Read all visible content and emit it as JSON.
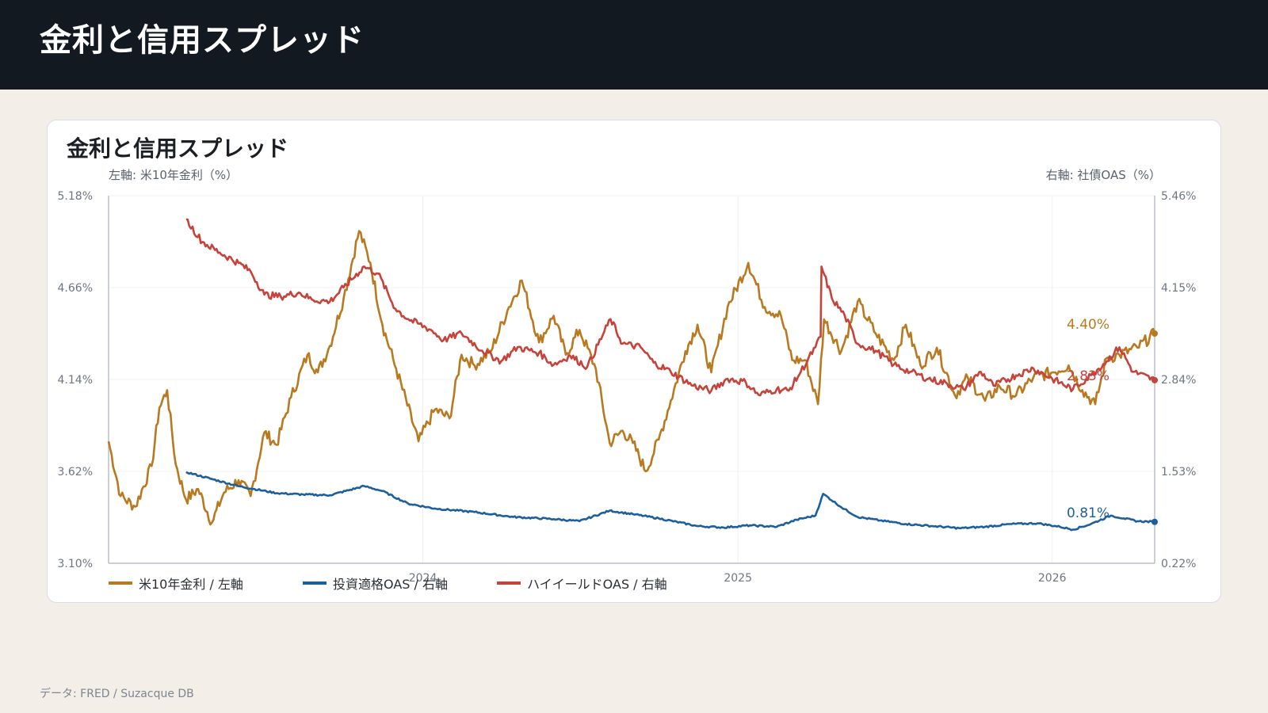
{
  "header": {
    "title": "金利と信用スプレッド"
  },
  "card": {
    "title": "金利と信用スプレッド",
    "left_axis_caption": "左軸: 米10年金利（%）",
    "right_axis_caption": "右軸: 社債OAS（%）"
  },
  "footer": {
    "source": "データ: FRED / Suzacque DB"
  },
  "colors": {
    "treasury": "#b8791f",
    "ig": "#1d5f9c",
    "hy": "#c6433b",
    "grid": "#edf0f3",
    "axis": "#b8c0c9"
  },
  "chart_data": {
    "type": "line",
    "left_axis": {
      "label": "米10年金利（%）",
      "range": [
        3.1,
        5.18
      ],
      "ticks": [
        "3.10%",
        "3.62%",
        "4.14%",
        "4.66%",
        "5.18%"
      ]
    },
    "right_axis": {
      "label": "社債OAS（%）",
      "range": [
        0.22,
        5.46
      ],
      "ticks": [
        "0.22%",
        "1.53%",
        "2.84%",
        "4.15%",
        "5.46%"
      ]
    },
    "x_axis": {
      "range": [
        "2023-01-01",
        "2026-04-30"
      ],
      "ticks": [
        "2024",
        "2025",
        "2026"
      ]
    },
    "grid": true,
    "legend_position": "bottom-left",
    "series": [
      {
        "name": "米10年金利 / 左軸",
        "axis": "left",
        "color": "#b8791f",
        "end_label": "4.40%",
        "points": [
          [
            "2023-01-01",
            3.79
          ],
          [
            "2023-01-15",
            3.48
          ],
          [
            "2023-02-01",
            3.42
          ],
          [
            "2023-02-20",
            3.65
          ],
          [
            "2023-03-01",
            3.98
          ],
          [
            "2023-03-10",
            4.08
          ],
          [
            "2023-03-20",
            3.66
          ],
          [
            "2023-04-01",
            3.46
          ],
          [
            "2023-04-15",
            3.52
          ],
          [
            "2023-05-01",
            3.33
          ],
          [
            "2023-05-15",
            3.5
          ],
          [
            "2023-06-01",
            3.57
          ],
          [
            "2023-06-15",
            3.48
          ],
          [
            "2023-07-01",
            3.84
          ],
          [
            "2023-07-15",
            3.77
          ],
          [
            "2023-08-01",
            4.04
          ],
          [
            "2023-08-20",
            4.28
          ],
          [
            "2023-09-01",
            4.18
          ],
          [
            "2023-09-15",
            4.33
          ],
          [
            "2023-10-01",
            4.6
          ],
          [
            "2023-10-19",
            4.98
          ],
          [
            "2023-11-01",
            4.8
          ],
          [
            "2023-11-15",
            4.45
          ],
          [
            "2023-12-01",
            4.2
          ],
          [
            "2023-12-27",
            3.79
          ],
          [
            "2024-01-15",
            3.97
          ],
          [
            "2024-02-01",
            3.92
          ],
          [
            "2024-02-15",
            4.28
          ],
          [
            "2024-03-01",
            4.22
          ],
          [
            "2024-03-20",
            4.3
          ],
          [
            "2024-04-10",
            4.55
          ],
          [
            "2024-04-25",
            4.7
          ],
          [
            "2024-05-15",
            4.35
          ],
          [
            "2024-06-01",
            4.5
          ],
          [
            "2024-06-15",
            4.28
          ],
          [
            "2024-07-01",
            4.42
          ],
          [
            "2024-07-20",
            4.2
          ],
          [
            "2024-08-05",
            3.78
          ],
          [
            "2024-08-20",
            3.85
          ],
          [
            "2024-09-01",
            3.78
          ],
          [
            "2024-09-16",
            3.62
          ],
          [
            "2024-10-01",
            3.8
          ],
          [
            "2024-10-15",
            4.02
          ],
          [
            "2024-11-01",
            4.3
          ],
          [
            "2024-11-15",
            4.45
          ],
          [
            "2024-12-01",
            4.18
          ],
          [
            "2024-12-20",
            4.55
          ],
          [
            "2025-01-13",
            4.8
          ],
          [
            "2025-02-01",
            4.55
          ],
          [
            "2025-02-20",
            4.5
          ],
          [
            "2025-03-05",
            4.25
          ],
          [
            "2025-03-20",
            4.25
          ],
          [
            "2025-04-04",
            4.0
          ],
          [
            "2025-04-11",
            4.48
          ],
          [
            "2025-05-01",
            4.3
          ],
          [
            "2025-05-20",
            4.58
          ],
          [
            "2025-06-10",
            4.4
          ],
          [
            "2025-07-01",
            4.25
          ],
          [
            "2025-07-15",
            4.45
          ],
          [
            "2025-08-01",
            4.22
          ],
          [
            "2025-08-20",
            4.32
          ],
          [
            "2025-09-10",
            4.05
          ],
          [
            "2025-09-25",
            4.15
          ],
          [
            "2025-10-15",
            4.02
          ],
          [
            "2025-11-01",
            4.1
          ],
          [
            "2025-11-20",
            4.05
          ],
          [
            "2025-12-10",
            4.15
          ],
          [
            "2026-01-01",
            4.18
          ],
          [
            "2026-01-20",
            4.22
          ],
          [
            "2026-02-05",
            4.08
          ],
          [
            "2026-02-20",
            4.0
          ],
          [
            "2026-03-05",
            4.26
          ],
          [
            "2026-03-20",
            4.28
          ],
          [
            "2026-04-10",
            4.32
          ],
          [
            "2026-04-30",
            4.4
          ]
        ]
      },
      {
        "name": "投資適格OAS / 右軸",
        "axis": "right",
        "color": "#1d5f9c",
        "end_label": "0.81%",
        "points": [
          [
            "2023-04-01",
            1.52
          ],
          [
            "2023-05-01",
            1.42
          ],
          [
            "2023-06-01",
            1.32
          ],
          [
            "2023-07-15",
            1.22
          ],
          [
            "2023-08-15",
            1.2
          ],
          [
            "2023-09-15",
            1.19
          ],
          [
            "2023-10-25",
            1.32
          ],
          [
            "2023-11-15",
            1.25
          ],
          [
            "2023-12-15",
            1.07
          ],
          [
            "2024-01-15",
            1.0
          ],
          [
            "2024-03-01",
            0.95
          ],
          [
            "2024-04-15",
            0.88
          ],
          [
            "2024-06-01",
            0.85
          ],
          [
            "2024-07-01",
            0.82
          ],
          [
            "2024-08-05",
            0.97
          ],
          [
            "2024-09-01",
            0.92
          ],
          [
            "2024-10-01",
            0.86
          ],
          [
            "2024-11-15",
            0.75
          ],
          [
            "2024-12-15",
            0.73
          ],
          [
            "2025-01-15",
            0.76
          ],
          [
            "2025-02-15",
            0.74
          ],
          [
            "2025-03-10",
            0.84
          ],
          [
            "2025-04-01",
            0.9
          ],
          [
            "2025-04-10",
            1.21
          ],
          [
            "2025-05-01",
            1.02
          ],
          [
            "2025-05-20",
            0.88
          ],
          [
            "2025-06-15",
            0.83
          ],
          [
            "2025-07-15",
            0.78
          ],
          [
            "2025-08-15",
            0.75
          ],
          [
            "2025-09-15",
            0.72
          ],
          [
            "2025-10-15",
            0.74
          ],
          [
            "2025-11-15",
            0.78
          ],
          [
            "2025-12-15",
            0.79
          ],
          [
            "2026-01-10",
            0.74
          ],
          [
            "2026-01-25",
            0.7
          ],
          [
            "2026-02-15",
            0.78
          ],
          [
            "2026-03-10",
            0.9
          ],
          [
            "2026-03-25",
            0.86
          ],
          [
            "2026-04-10",
            0.82
          ],
          [
            "2026-04-30",
            0.81
          ]
        ]
      },
      {
        "name": "ハイイールドOAS / 右軸",
        "axis": "right",
        "color": "#c6433b",
        "end_label": "2.83%",
        "points": [
          [
            "2023-04-01",
            5.12
          ],
          [
            "2023-04-20",
            4.8
          ],
          [
            "2023-05-10",
            4.65
          ],
          [
            "2023-06-01",
            4.5
          ],
          [
            "2023-06-15",
            4.38
          ],
          [
            "2023-07-01",
            4.05
          ],
          [
            "2023-07-20",
            4.02
          ],
          [
            "2023-08-10",
            4.08
          ],
          [
            "2023-08-25",
            3.98
          ],
          [
            "2023-09-15",
            3.95
          ],
          [
            "2023-10-01",
            4.15
          ],
          [
            "2023-10-25",
            4.45
          ],
          [
            "2023-11-10",
            4.35
          ],
          [
            "2023-11-30",
            3.85
          ],
          [
            "2023-12-15",
            3.7
          ],
          [
            "2024-01-10",
            3.55
          ],
          [
            "2024-01-25",
            3.4
          ],
          [
            "2024-02-15",
            3.5
          ],
          [
            "2024-03-10",
            3.25
          ],
          [
            "2024-04-01",
            3.1
          ],
          [
            "2024-04-20",
            3.3
          ],
          [
            "2024-05-15",
            3.22
          ],
          [
            "2024-06-01",
            3.05
          ],
          [
            "2024-06-20",
            3.18
          ],
          [
            "2024-07-10",
            3.02
          ],
          [
            "2024-08-06",
            3.7
          ],
          [
            "2024-08-20",
            3.35
          ],
          [
            "2024-09-10",
            3.3
          ],
          [
            "2024-09-25",
            3.08
          ],
          [
            "2024-10-15",
            2.95
          ],
          [
            "2024-11-10",
            2.75
          ],
          [
            "2024-12-01",
            2.68
          ],
          [
            "2024-12-20",
            2.85
          ],
          [
            "2025-01-10",
            2.8
          ],
          [
            "2025-01-25",
            2.62
          ],
          [
            "2025-02-15",
            2.7
          ],
          [
            "2025-03-01",
            2.68
          ],
          [
            "2025-03-15",
            2.95
          ],
          [
            "2025-04-01",
            3.3
          ],
          [
            "2025-04-07",
            3.45
          ],
          [
            "2025-04-08",
            4.45
          ],
          [
            "2025-04-20",
            4.0
          ],
          [
            "2025-05-05",
            3.75
          ],
          [
            "2025-05-20",
            3.35
          ],
          [
            "2025-06-10",
            3.25
          ],
          [
            "2025-07-01",
            3.05
          ],
          [
            "2025-07-20",
            2.95
          ],
          [
            "2025-08-10",
            2.85
          ],
          [
            "2025-09-01",
            2.78
          ],
          [
            "2025-09-20",
            2.7
          ],
          [
            "2025-10-10",
            2.95
          ],
          [
            "2025-10-25",
            2.75
          ],
          [
            "2025-11-20",
            2.9
          ],
          [
            "2025-12-10",
            3.0
          ],
          [
            "2026-01-01",
            2.85
          ],
          [
            "2026-01-25",
            2.7
          ],
          [
            "2026-02-15",
            2.9
          ],
          [
            "2026-03-05",
            3.1
          ],
          [
            "2026-03-20",
            3.3
          ],
          [
            "2026-04-05",
            2.95
          ],
          [
            "2026-04-30",
            2.83
          ]
        ]
      }
    ]
  }
}
